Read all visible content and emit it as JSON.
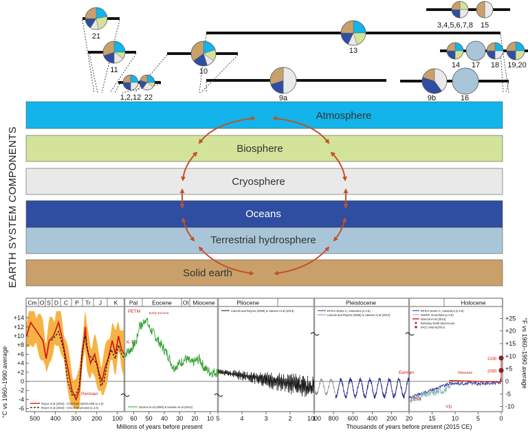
{
  "colors": {
    "atmosphere": "#12b4ea",
    "biosphere": "#d3e39a",
    "cryosphere": "#e9e9e9",
    "oceans": "#2f4ea1",
    "terrestrial": "#a9c6d9",
    "solid_earth": "#c9a06a",
    "arrow": "#c0522b",
    "proxy_orange": "#f5a623",
    "green_series": "#2ca02c",
    "red_series": "#d21a1a"
  },
  "side_title": "EARTH SYSTEM COMPONENTS",
  "bands": [
    {
      "label": "Atmosphere"
    },
    {
      "label": "Biosphere"
    },
    {
      "label": "Cryosphere"
    },
    {
      "label": "Oceans"
    },
    {
      "label": "Terrestrial hydrosphere"
    },
    {
      "label": "Solid earth"
    }
  ],
  "pie_labels": {
    "p21": "21",
    "p11": "11",
    "p1_2_12": "1,2,12",
    "p22": "22",
    "p10": "10",
    "p9a": "9a",
    "p13": "13",
    "p3_8": "3,4,5,6,7,8",
    "p15": "15",
    "p14": "14",
    "p17": "17",
    "p18": "18",
    "p19_20": "19,20",
    "p9b": "9b",
    "p16": "16"
  },
  "chart": {
    "periods_left": [
      "Cm",
      "O",
      "S",
      "D",
      "C",
      "P",
      "Tr",
      "J",
      "K"
    ],
    "periods_mid": [
      "Pal",
      "Eocene",
      "Ol",
      "Miocene",
      "Pliocene"
    ],
    "periods_right": [
      "Pleistocene",
      "Holocene"
    ],
    "left_yticks": [
      "+14",
      "+12",
      "+10",
      "+8",
      "+6",
      "+4",
      "+2",
      "0",
      "-2",
      "-4",
      "-6"
    ],
    "right_yticks": [
      "+25",
      "+20",
      "+15",
      "+10",
      "+5",
      "0",
      "-5",
      "-10"
    ],
    "ylabel_left": "°C vs 1960–1990 average",
    "ylabel_right": "°F vs 1960–1990 average",
    "x1_ticks": [
      "500",
      "400",
      "300",
      "200",
      "100"
    ],
    "x2_ticks": [
      "60",
      "50",
      "40",
      "30",
      "20",
      "10"
    ],
    "x3_ticks": [
      "5",
      "4",
      "3",
      "2",
      "1"
    ],
    "x4_ticks": [
      "1000",
      "800",
      "600",
      "400",
      "200",
      "20"
    ],
    "x5_ticks": [
      "15",
      "10",
      "5",
      "0"
    ],
    "xlabel_myr": "Millions of years before present",
    "xlabel_kyr": "Thousands of years before present (2015 CE)",
    "annotations": {
      "petm": "PETM",
      "early_eocene": "Early Eocene",
      "kt": "K-T",
      "permian": "Permian",
      "eemian": "Eemian",
      "lgm": "LGM",
      "yd": "YD",
      "holocene": "Holocene",
      "y2100": "2100",
      "y2050": "2050"
    },
    "legends": {
      "royer1": "Royer et al (2004) - CO2 from GEOCARB (x 2.0)",
      "royer2": "Royer et al (2004) - CO2 from proxies (x 2.0)",
      "zachos": "Zachos et al (2008) & Hansen et al (2013)",
      "lisiecki": "Lisiecki and Raymo (2005) & Hansen et al (2013)",
      "epica_x05": "EPICA Dome C, Antarctica (x 0.5)",
      "lisiecki2": "Lisiecki and Raymo (2005) & Hansen et al (2013)",
      "epica2": "EPICA Dome C, Antarctica (x 0.5)",
      "ngrip": "NGRIP, Greenland (x 0.5)",
      "marcott": "Marcott et al (2013)",
      "berkeley": "Berkeley Earth land-ocean",
      "ipcc": "IPCC AR5 RCP8.5"
    }
  }
}
